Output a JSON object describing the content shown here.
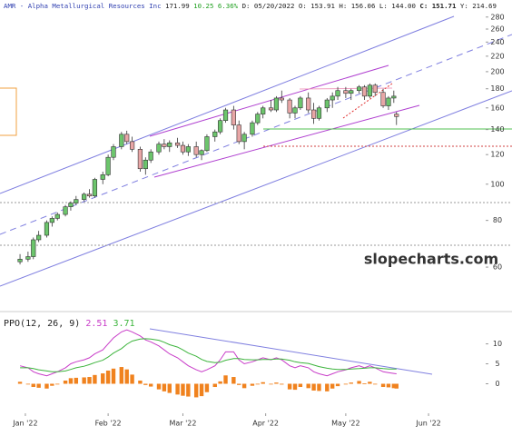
{
  "chart_data": {
    "type": "candlestick",
    "header": {
      "symbol": "AMR - Alpha Metallurgical Resources Inc",
      "last": "171.99",
      "change": "10.25",
      "percent": "6.36%",
      "date": "D: 05/20/2022",
      "open": "O: 153.91",
      "high": "H: 156.06",
      "low": "L: 144.00",
      "close": "C: 151.71",
      "year": "Y: 214.69"
    },
    "watermark": "slopecharts.com",
    "log": true,
    "up_color": "#6cc56c",
    "down_color": "#e8a6a6",
    "xlim": [
      -9.5,
      172.4
    ],
    "xticks": [
      {
        "value": 0,
        "label": "Jan '22"
      },
      {
        "value": 31,
        "label": "Feb '22"
      },
      {
        "value": 59,
        "label": "Mar '22"
      },
      {
        "value": 90,
        "label": "Apr '22"
      },
      {
        "value": 120,
        "label": "May '22"
      },
      {
        "value": 151,
        "label": "Jun '22"
      }
    ],
    "ylim": [
      46.4,
      311
    ],
    "yticks": [
      60,
      80,
      100,
      120,
      140,
      160,
      180,
      200,
      220,
      240,
      260,
      280
    ],
    "x": [
      -2,
      1,
      3,
      5,
      8,
      10,
      12,
      15,
      17,
      19,
      22,
      24,
      26,
      29,
      31,
      33,
      36,
      38,
      40,
      43,
      45,
      47,
      50,
      52,
      54,
      57,
      59,
      61,
      64,
      66,
      68,
      71,
      73,
      75,
      78,
      80,
      82,
      85,
      87,
      89,
      92,
      94,
      96,
      99,
      101,
      103,
      106,
      108,
      110,
      113,
      115,
      117,
      120,
      122,
      125,
      127,
      129,
      131,
      134,
      136,
      138,
      139
    ],
    "open": [
      62,
      63,
      64,
      71,
      73,
      79,
      81,
      83,
      87,
      89,
      91,
      94,
      93,
      103,
      106,
      118,
      126,
      136,
      130,
      124,
      110,
      116,
      122,
      128,
      126,
      129,
      127,
      122,
      126,
      120,
      123,
      134,
      138,
      148,
      158,
      144,
      130,
      136,
      146,
      154,
      160,
      158,
      170,
      168,
      155,
      160,
      170,
      158,
      150,
      160,
      168,
      172,
      178,
      175,
      178,
      182,
      172,
      184,
      176,
      162,
      170,
      153.91
    ],
    "high": [
      65,
      66,
      72,
      75,
      80,
      82,
      84,
      88,
      90,
      93,
      95,
      97,
      104,
      108,
      120,
      128,
      138,
      139,
      134,
      126,
      118,
      124,
      130,
      132,
      131,
      133,
      130,
      128,
      130,
      124,
      136,
      140,
      150,
      160,
      162,
      148,
      138,
      148,
      156,
      162,
      168,
      172,
      178,
      170,
      162,
      172,
      176,
      165,
      162,
      170,
      176,
      182,
      182,
      180,
      184,
      184,
      186,
      186,
      180,
      172,
      178,
      156.06
    ],
    "low": [
      61,
      62,
      63,
      70,
      72,
      77,
      80,
      82,
      85,
      88,
      90,
      92,
      92,
      100,
      105,
      116,
      124,
      128,
      122,
      108,
      106,
      114,
      120,
      124,
      122,
      125,
      120,
      119,
      118,
      116,
      122,
      130,
      136,
      146,
      140,
      128,
      124,
      134,
      144,
      150,
      156,
      156,
      165,
      150,
      150,
      158,
      155,
      145,
      148,
      156,
      160,
      168,
      170,
      168,
      175,
      168,
      170,
      172,
      160,
      158,
      165,
      144.0
    ],
    "close": [
      63,
      64,
      71,
      73,
      79,
      81,
      83,
      87,
      89,
      91,
      94,
      93,
      103,
      106,
      118,
      126,
      136,
      130,
      124,
      110,
      116,
      122,
      128,
      126,
      129,
      127,
      122,
      126,
      120,
      123,
      134,
      138,
      148,
      158,
      144,
      130,
      136,
      146,
      154,
      160,
      158,
      170,
      168,
      155,
      160,
      170,
      158,
      150,
      160,
      168,
      172,
      178,
      175,
      178,
      182,
      172,
      184,
      176,
      162,
      170,
      172,
      151.71
    ],
    "indicator": {
      "title": "PPO(12, 26, 9)",
      "ylim": [
        -7.4,
        18.1
      ],
      "yticks": [
        0,
        5,
        10
      ],
      "series": [
        {
          "label": "2.51",
          "color": "#c83cc8",
          "values": [
            4.5,
            4,
            3,
            2.5,
            2,
            2.5,
            3,
            4,
            5,
            5.5,
            6,
            6.5,
            7.5,
            8.5,
            10,
            11.5,
            13,
            13.5,
            13,
            12,
            11,
            10.5,
            9.5,
            8.5,
            7.5,
            6.5,
            5.5,
            4.5,
            3.5,
            3,
            3.5,
            4.5,
            6,
            8,
            8,
            6,
            5,
            5.5,
            6,
            6.5,
            6,
            6.5,
            6,
            4.5,
            4,
            4.5,
            4,
            3,
            2.5,
            2,
            2.5,
            3,
            3.5,
            4,
            4.5,
            4,
            4.5,
            4,
            3,
            2.8,
            2.6,
            2.51
          ]
        },
        {
          "label": "3.71",
          "color": "#3cb43c",
          "values": [
            4,
            4,
            3.8,
            3.5,
            3.2,
            3,
            3,
            3.2,
            3.6,
            4,
            4.4,
            4.8,
            5.3,
            5.9,
            6.7,
            7.7,
            8.8,
            9.9,
            10.7,
            11.2,
            11.3,
            11.2,
            10.9,
            10.4,
            9.8,
            9.2,
            8.5,
            7.7,
            6.9,
            6.1,
            5.6,
            5.3,
            5.4,
            5.9,
            6.3,
            6.3,
            6.1,
            6,
            6,
            6.1,
            6.1,
            6.2,
            6.2,
            5.9,
            5.5,
            5.3,
            5.1,
            4.7,
            4.3,
            3.9,
            3.7,
            3.6,
            3.6,
            3.7,
            3.8,
            3.9,
            4,
            4,
            3.8,
            3.7,
            3.7,
            3.71
          ]
        }
      ],
      "histogram": {
        "color": "#f0821e",
        "values": [
          0.5,
          0,
          -0.8,
          -1,
          -1.2,
          -0.5,
          0,
          0.8,
          1.4,
          1.5,
          1.6,
          1.7,
          2.2,
          2.6,
          3.3,
          3.8,
          4.2,
          3.6,
          2.3,
          0.8,
          -0.3,
          -0.7,
          -1.4,
          -1.9,
          -2.3,
          -2.7,
          -3,
          -3.2,
          -3.4,
          -3.1,
          -2.1,
          -0.8,
          0.6,
          2.1,
          1.7,
          -0.3,
          -1.1,
          -0.5,
          0,
          0.4,
          -0.1,
          0.3,
          -0.2,
          -1.4,
          -1.5,
          -0.8,
          -1.1,
          -1.7,
          -1.8,
          -1.9,
          -1.2,
          -0.6,
          -0.1,
          0.3,
          0.7,
          0.1,
          0.5,
          0,
          -0.8,
          -0.9,
          -1.1,
          -1.2
        ]
      }
    }
  }
}
